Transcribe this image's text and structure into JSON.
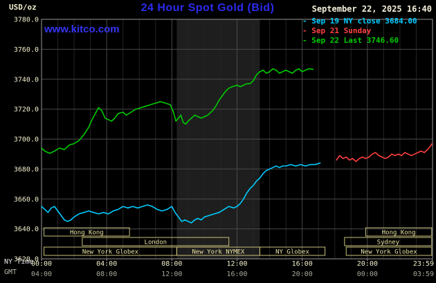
{
  "header": {
    "unit_label": "USD/oz",
    "title": "24 Hour Spot Gold (Bid)",
    "datetime": "September 22, 2025 16:40",
    "watermark": "www.kitco.com"
  },
  "legend": {
    "items": [
      {
        "label": "- Sep 19 NY close 3684.00",
        "color": "#00ccff"
      },
      {
        "label": "- Sep 21 Sunday",
        "color": "#ff4040"
      },
      {
        "label": "- Sep 22 Last 3746.60",
        "color": "#00cc00"
      }
    ]
  },
  "axes": {
    "ny_label": "NY Time",
    "gmt_label": "GMT",
    "y_ticks": [
      3780,
      3760,
      3740,
      3720,
      3700,
      3680,
      3660,
      3640,
      3620
    ],
    "x_ticks": [
      {
        "hour": 0,
        "ny": "00:00",
        "gmt": "04:00"
      },
      {
        "hour": 4,
        "ny": "04:00",
        "gmt": "08:00"
      },
      {
        "hour": 8,
        "ny": "08:00",
        "gmt": "12:00"
      },
      {
        "hour": 12,
        "ny": "12:00",
        "gmt": "16:00"
      },
      {
        "hour": 16,
        "ny": "16:00",
        "gmt": "20:00"
      },
      {
        "hour": 20,
        "ny": "20:00",
        "gmt": "00:00"
      },
      {
        "hour": 23.983,
        "ny": "23:59",
        "gmt": "03:59"
      }
    ]
  },
  "chart_data": {
    "type": "line",
    "title": "24 Hour Spot Gold (Bid)",
    "ylabel": "USD/oz",
    "ylim": [
      3620,
      3780
    ],
    "xlim_hours": [
      0,
      24
    ],
    "grid": true,
    "colors": {
      "background": "#000000",
      "band": "#1e1e1e",
      "grid_major": "#4a4a4a",
      "grid_minor": "#242424",
      "border": "#999999",
      "axis_text": "#f2eecb",
      "gmt_text": "#a8a89a",
      "session_border": "#c9c27a",
      "session_text": "#e9e2a0"
    },
    "highlight_band": {
      "start": 8.3,
      "end": 13.4
    },
    "series": [
      {
        "name": "Sep 19 NY close",
        "color": "#00ccff",
        "points": [
          [
            0,
            3655
          ],
          [
            0.2,
            3653
          ],
          [
            0.4,
            3651
          ],
          [
            0.6,
            3654
          ],
          [
            0.8,
            3655
          ],
          [
            1.0,
            3652
          ],
          [
            1.2,
            3649
          ],
          [
            1.4,
            3646
          ],
          [
            1.6,
            3645
          ],
          [
            1.8,
            3646
          ],
          [
            2.0,
            3648
          ],
          [
            2.3,
            3650
          ],
          [
            2.6,
            3651
          ],
          [
            2.9,
            3652
          ],
          [
            3.2,
            3651
          ],
          [
            3.5,
            3650
          ],
          [
            3.8,
            3651
          ],
          [
            4.1,
            3650
          ],
          [
            4.4,
            3652
          ],
          [
            4.7,
            3653
          ],
          [
            5.0,
            3655
          ],
          [
            5.3,
            3654
          ],
          [
            5.6,
            3655
          ],
          [
            5.9,
            3654
          ],
          [
            6.2,
            3655
          ],
          [
            6.5,
            3656
          ],
          [
            6.8,
            3655
          ],
          [
            7.1,
            3653
          ],
          [
            7.4,
            3652
          ],
          [
            7.7,
            3653
          ],
          [
            8.0,
            3655
          ],
          [
            8.2,
            3651
          ],
          [
            8.4,
            3648
          ],
          [
            8.6,
            3645
          ],
          [
            8.8,
            3646
          ],
          [
            9.0,
            3645
          ],
          [
            9.2,
            3644
          ],
          [
            9.4,
            3646
          ],
          [
            9.6,
            3647
          ],
          [
            9.8,
            3646
          ],
          [
            10.0,
            3648
          ],
          [
            10.3,
            3649
          ],
          [
            10.6,
            3650
          ],
          [
            10.9,
            3651
          ],
          [
            11.2,
            3653
          ],
          [
            11.5,
            3655
          ],
          [
            11.8,
            3654
          ],
          [
            12.0,
            3655
          ],
          [
            12.2,
            3657
          ],
          [
            12.4,
            3660
          ],
          [
            12.6,
            3664
          ],
          [
            12.8,
            3667
          ],
          [
            13.0,
            3669
          ],
          [
            13.2,
            3672
          ],
          [
            13.4,
            3674
          ],
          [
            13.6,
            3677
          ],
          [
            13.8,
            3679
          ],
          [
            14.0,
            3680
          ],
          [
            14.2,
            3681
          ],
          [
            14.4,
            3682
          ],
          [
            14.6,
            3681
          ],
          [
            14.8,
            3682
          ],
          [
            15.0,
            3682
          ],
          [
            15.3,
            3683
          ],
          [
            15.6,
            3682
          ],
          [
            15.9,
            3683
          ],
          [
            16.2,
            3682
          ],
          [
            16.5,
            3683
          ],
          [
            16.8,
            3683
          ],
          [
            17.1,
            3684
          ]
        ]
      },
      {
        "name": "Sep 21 Sunday",
        "color": "#ff4040",
        "points": [
          [
            18.1,
            3686
          ],
          [
            18.3,
            3689
          ],
          [
            18.5,
            3687
          ],
          [
            18.7,
            3688
          ],
          [
            18.9,
            3686
          ],
          [
            19.1,
            3687
          ],
          [
            19.3,
            3685
          ],
          [
            19.5,
            3687
          ],
          [
            19.7,
            3688
          ],
          [
            19.9,
            3687
          ],
          [
            20.1,
            3688
          ],
          [
            20.3,
            3690
          ],
          [
            20.5,
            3691
          ],
          [
            20.7,
            3689
          ],
          [
            20.9,
            3688
          ],
          [
            21.1,
            3687
          ],
          [
            21.3,
            3688
          ],
          [
            21.5,
            3690
          ],
          [
            21.7,
            3689
          ],
          [
            21.9,
            3690
          ],
          [
            22.1,
            3689
          ],
          [
            22.3,
            3691
          ],
          [
            22.5,
            3690
          ],
          [
            22.7,
            3689
          ],
          [
            22.9,
            3690
          ],
          [
            23.1,
            3691
          ],
          [
            23.3,
            3692
          ],
          [
            23.5,
            3691
          ],
          [
            23.7,
            3693
          ],
          [
            23.85,
            3695
          ],
          [
            23.98,
            3697
          ]
        ]
      },
      {
        "name": "Sep 22 Last",
        "color": "#00cc00",
        "points": [
          [
            0,
            3694
          ],
          [
            0.2,
            3692
          ],
          [
            0.5,
            3690.5
          ],
          [
            0.8,
            3692
          ],
          [
            1.1,
            3694
          ],
          [
            1.4,
            3693
          ],
          [
            1.7,
            3696
          ],
          [
            2.0,
            3697
          ],
          [
            2.3,
            3699
          ],
          [
            2.6,
            3703
          ],
          [
            2.9,
            3708
          ],
          [
            3.1,
            3713
          ],
          [
            3.3,
            3717
          ],
          [
            3.5,
            3721
          ],
          [
            3.7,
            3719
          ],
          [
            3.9,
            3714
          ],
          [
            4.1,
            3713
          ],
          [
            4.3,
            3712
          ],
          [
            4.5,
            3714
          ],
          [
            4.7,
            3717
          ],
          [
            5.0,
            3718
          ],
          [
            5.2,
            3716
          ],
          [
            5.5,
            3718
          ],
          [
            5.8,
            3720
          ],
          [
            6.1,
            3721
          ],
          [
            6.4,
            3722
          ],
          [
            6.7,
            3723
          ],
          [
            7.0,
            3724
          ],
          [
            7.3,
            3725
          ],
          [
            7.6,
            3724
          ],
          [
            7.9,
            3723
          ],
          [
            8.1,
            3718
          ],
          [
            8.25,
            3712
          ],
          [
            8.4,
            3714
          ],
          [
            8.55,
            3716
          ],
          [
            8.7,
            3711
          ],
          [
            8.85,
            3710
          ],
          [
            9.0,
            3712
          ],
          [
            9.2,
            3714
          ],
          [
            9.4,
            3716
          ],
          [
            9.6,
            3715
          ],
          [
            9.8,
            3714
          ],
          [
            10.0,
            3715
          ],
          [
            10.2,
            3716
          ],
          [
            10.5,
            3719
          ],
          [
            10.7,
            3722
          ],
          [
            10.9,
            3726
          ],
          [
            11.1,
            3729
          ],
          [
            11.3,
            3732
          ],
          [
            11.5,
            3734
          ],
          [
            11.7,
            3735
          ],
          [
            12.0,
            3736
          ],
          [
            12.2,
            3735
          ],
          [
            12.4,
            3736
          ],
          [
            12.6,
            3737
          ],
          [
            12.8,
            3737
          ],
          [
            13.0,
            3739
          ],
          [
            13.2,
            3743
          ],
          [
            13.4,
            3745
          ],
          [
            13.6,
            3746
          ],
          [
            13.8,
            3744
          ],
          [
            14.0,
            3745
          ],
          [
            14.2,
            3747
          ],
          [
            14.4,
            3746
          ],
          [
            14.6,
            3744
          ],
          [
            14.8,
            3745
          ],
          [
            15.0,
            3746
          ],
          [
            15.2,
            3745
          ],
          [
            15.4,
            3744
          ],
          [
            15.6,
            3746
          ],
          [
            15.8,
            3747
          ],
          [
            16.0,
            3745
          ],
          [
            16.2,
            3746
          ],
          [
            16.4,
            3747
          ],
          [
            16.67,
            3746.6
          ]
        ]
      }
    ],
    "sessions": [
      {
        "row": 0,
        "start": 0.15,
        "end": 5.4,
        "label": "Hong Kong"
      },
      {
        "row": 0,
        "start": 19.9,
        "end": 23.95,
        "label": "Hong Kong"
      },
      {
        "row": 1,
        "start": 2.5,
        "end": 11.5,
        "label": "London"
      },
      {
        "row": 1,
        "start": 18.6,
        "end": 23.95,
        "label": "Sydney"
      },
      {
        "row": 2,
        "start": 0.15,
        "end": 8.3,
        "label": "New York Globex"
      },
      {
        "row": 2,
        "start": 8.3,
        "end": 13.4,
        "label": "New York NYMEX"
      },
      {
        "row": 2,
        "start": 13.4,
        "end": 17.4,
        "label": "NY Globex"
      },
      {
        "row": 2,
        "start": 18.7,
        "end": 23.95,
        "label": "New York Globex"
      }
    ]
  }
}
